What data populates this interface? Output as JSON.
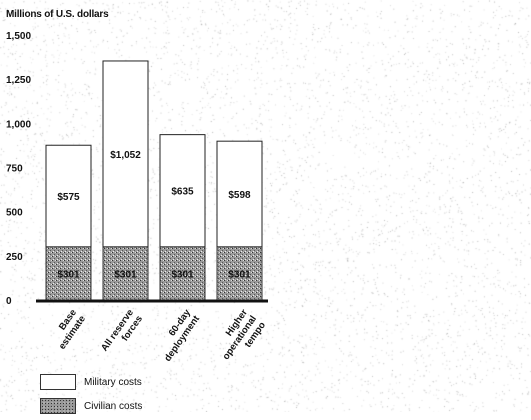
{
  "chart_data": {
    "type": "bar",
    "stacked": true,
    "ylabel": "Millions of U.S. dollars",
    "ylim": [
      0,
      1500
    ],
    "yticks": [
      0,
      250,
      500,
      750,
      "1,000",
      "1,250",
      "1,500"
    ],
    "ytick_values": [
      0,
      250,
      500,
      750,
      1000,
      1250,
      1500
    ],
    "categories": [
      [
        "Base",
        "estimate"
      ],
      [
        "All reserve",
        "forces"
      ],
      [
        "60-day",
        "deployment"
      ],
      [
        "Higher",
        "operational",
        "tempo"
      ]
    ],
    "series": [
      {
        "name": "Civilian costs",
        "values": [
          301,
          301,
          301,
          301
        ],
        "labels": [
          "$301",
          "$301",
          "$301",
          "$301"
        ]
      },
      {
        "name": "Military costs",
        "values": [
          575,
          1052,
          635,
          598
        ],
        "labels": [
          "$575",
          "$1,052",
          "$635",
          "$598"
        ]
      }
    ],
    "grid": false,
    "legend_position": "bottom-left"
  },
  "legend": {
    "military_label": "Military costs",
    "civilian_label": "Civilian costs"
  },
  "colors": {
    "military": "#ffffff",
    "civilian": "#9a9a9a",
    "baseline": "#111111"
  }
}
